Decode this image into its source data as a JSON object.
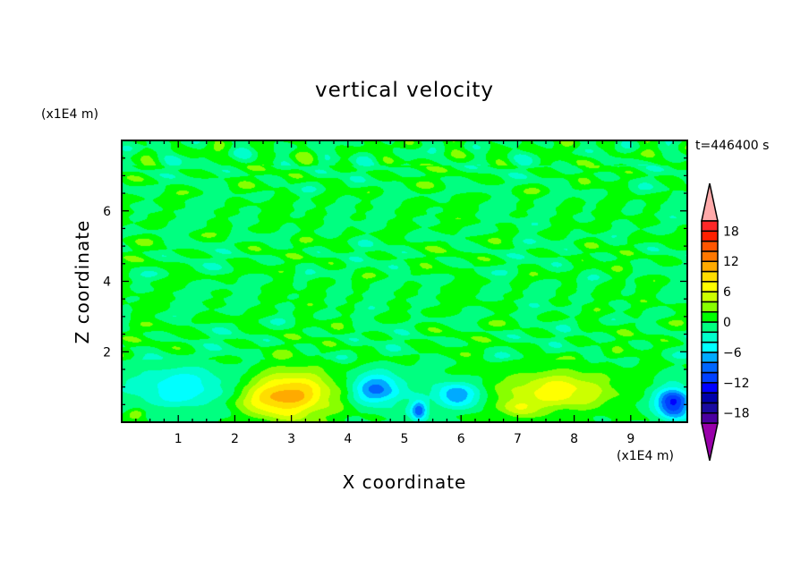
{
  "chart_data": {
    "type": "heatmap",
    "subtype": "filled-contour",
    "title": "vertical velocity",
    "xlabel": "X coordinate",
    "ylabel": "Z coordinate",
    "x_unit": "(x1E4 m)",
    "y_unit": "(x1E4 m)",
    "time_label": "t=446400 s",
    "xlim": [
      0,
      10
    ],
    "ylim": [
      0,
      8
    ],
    "x_ticks": [
      1,
      2,
      3,
      4,
      5,
      6,
      7,
      8,
      9
    ],
    "y_ticks": [
      2,
      4,
      6
    ],
    "colorbar": {
      "levels": [
        -20,
        -18,
        -16,
        -14,
        -12,
        -10,
        -8,
        -6,
        -4,
        -2,
        0,
        2,
        4,
        6,
        8,
        10,
        12,
        14,
        16,
        18,
        20
      ],
      "tick_labels": [
        "18",
        "12",
        "6",
        "0",
        "-6",
        "-12",
        "-18"
      ],
      "tick_values": [
        18,
        12,
        6,
        0,
        -6,
        -12,
        -18
      ],
      "colors_low_to_high": [
        "#4b00a0",
        "#1a0aa0",
        "#0000aa",
        "#0000ff",
        "#0040ff",
        "#0066ff",
        "#00aaff",
        "#00ffff",
        "#00ffcc",
        "#00ff80",
        "#00ff00",
        "#88ff00",
        "#ccff00",
        "#ffff00",
        "#ffdd00",
        "#ffaa00",
        "#ff7700",
        "#ff5500",
        "#ff2000",
        "#ff2828"
      ],
      "under_color": "#9900aa",
      "over_color": "#ffaaaa"
    },
    "features": [
      {
        "x": 3.0,
        "z": 0.8,
        "value": 9.5,
        "sx": 0.75,
        "sz": 0.65
      },
      {
        "x": 2.6,
        "z": 0.6,
        "value": 3,
        "sx": 0.6,
        "sz": 0.5
      },
      {
        "x": 7.7,
        "z": 0.9,
        "value": 7.5,
        "sx": 0.9,
        "sz": 0.55
      },
      {
        "x": 7.0,
        "z": 0.4,
        "value": 4,
        "sx": 0.3,
        "sz": 0.3
      },
      {
        "x": 1.0,
        "z": 1.0,
        "value": -5.5,
        "sx": 0.9,
        "sz": 0.6
      },
      {
        "x": 4.5,
        "z": 0.95,
        "value": -8.5,
        "sx": 0.45,
        "sz": 0.45
      },
      {
        "x": 5.9,
        "z": 0.8,
        "value": -8,
        "sx": 0.4,
        "sz": 0.35
      },
      {
        "x": 5.25,
        "z": 0.35,
        "value": -9.5,
        "sx": 0.15,
        "sz": 0.3
      },
      {
        "x": 9.75,
        "z": 0.55,
        "value": -13,
        "sx": 0.3,
        "sz": 0.45
      },
      {
        "x": 0.25,
        "z": 0.25,
        "value": 4,
        "sx": 0.15,
        "sz": 0.15
      }
    ]
  }
}
